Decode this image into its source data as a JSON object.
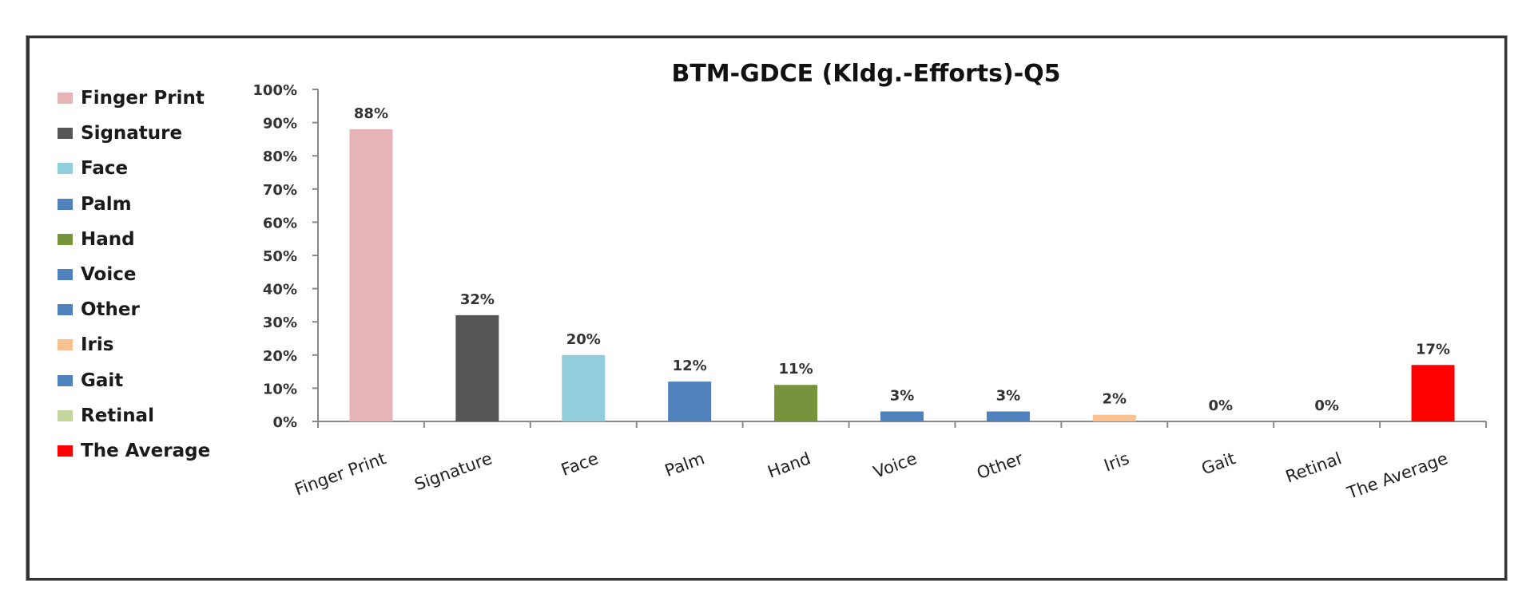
{
  "chart_data": {
    "type": "bar",
    "title": "BTM-GDCE  (Kldg.-Efforts)-Q5",
    "categories": [
      "Finger Print",
      "Signature",
      "Face",
      "Palm",
      "Hand",
      "Voice",
      "Other",
      "Iris",
      "Gait",
      "Retinal",
      "The Average"
    ],
    "values": [
      88,
      32,
      20,
      12,
      11,
      3,
      3,
      2,
      0,
      0,
      17
    ],
    "data_labels": [
      "88%",
      "32%",
      "20%",
      "12%",
      "11%",
      "3%",
      "3%",
      "2%",
      "0%",
      "0%",
      "17%"
    ],
    "colors": [
      "#e6b3b7",
      "#555555",
      "#92cddc",
      "#4f81bd",
      "#77933c",
      "#4f81bd",
      "#4f81bd",
      "#fac090",
      "#4f81bd",
      "#c3d69b",
      "#ff0000"
    ],
    "ylim": [
      0,
      100
    ],
    "yticks": [
      "0%",
      "10%",
      "20%",
      "30%",
      "40%",
      "50%",
      "60%",
      "70%",
      "80%",
      "90%",
      "100%"
    ],
    "xlabel": "",
    "ylabel": "",
    "grid": false,
    "legend_position": "left"
  }
}
